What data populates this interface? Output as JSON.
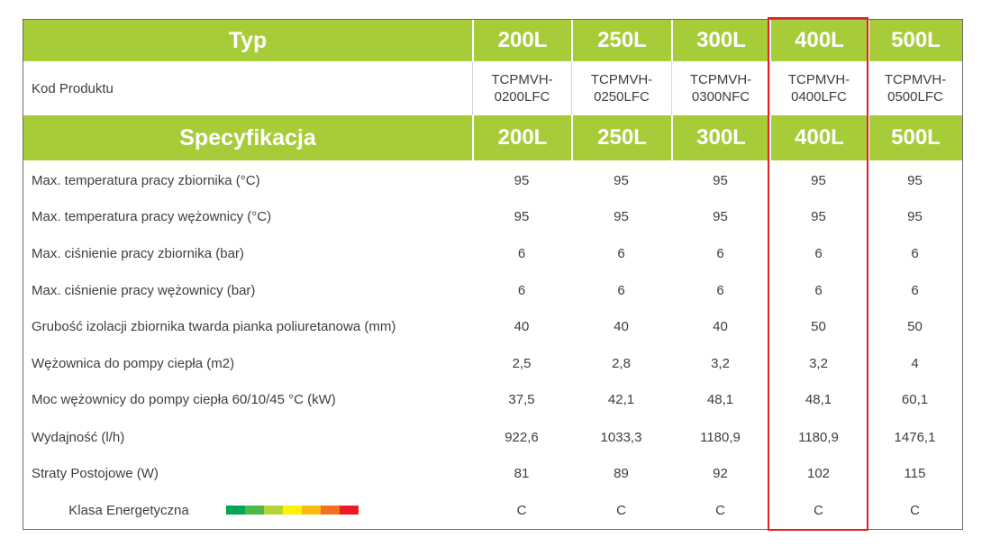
{
  "header_row": {
    "title": "Typ",
    "sizes": [
      "200L",
      "250L",
      "300L",
      "400L",
      "500L"
    ]
  },
  "code_row": {
    "label": "Kod Produktu",
    "codes": [
      "TCPMVH-\n0200LFC",
      "TCPMVH-\n0250LFC",
      "TCPMVH-\n0300NFC",
      "TCPMVH-\n0400LFC",
      "TCPMVH-\n0500LFC"
    ]
  },
  "spec_header": {
    "title": "Specyfikacja",
    "sizes": [
      "200L",
      "250L",
      "300L",
      "400L",
      "500L"
    ]
  },
  "rows": [
    {
      "label": "Max. temperatura pracy zbiornika (°C)",
      "values": [
        "95",
        "95",
        "95",
        "95",
        "95"
      ]
    },
    {
      "label": "Max. temperatura pracy wężownicy (°C)",
      "values": [
        "95",
        "95",
        "95",
        "95",
        "95"
      ]
    },
    {
      "label": "Max. ciśnienie pracy zbiornika (bar)",
      "values": [
        "6",
        "6",
        "6",
        "6",
        "6"
      ]
    },
    {
      "label": "Max. ciśnienie pracy wężownicy (bar)",
      "values": [
        "6",
        "6",
        "6",
        "6",
        "6"
      ]
    },
    {
      "label": "Grubość izolacji zbiornika twarda pianka poliuretanowa  (mm)",
      "values": [
        "40",
        "40",
        "40",
        "50",
        "50"
      ]
    },
    {
      "label": "Wężownica do pompy ciepła (m2)",
      "values": [
        "2,5",
        "2,8",
        "3,2",
        "3,2",
        "4"
      ]
    },
    {
      "label": "Moc wężownicy do pompy ciepła 60/10/45 °C (kW)",
      "values": [
        "37,5",
        "42,1",
        "48,1",
        "48,1",
        "60,1"
      ]
    },
    {
      "label": "Wydajność (l/h)",
      "values": [
        "922,6",
        "1033,3",
        "1180,9",
        "1180,9",
        "1476,1"
      ]
    },
    {
      "label": "Straty Postojowe (W)",
      "values": [
        "81",
        "89",
        "92",
        "102",
        "115"
      ]
    },
    {
      "label": "Klasa Energetyczna",
      "values": [
        "C",
        "C",
        "C",
        "C",
        "C"
      ]
    }
  ],
  "energy_scale_colors": [
    "#00a651",
    "#4cb848",
    "#b5d334",
    "#fff200",
    "#fdb913",
    "#f37021",
    "#ed1c24"
  ],
  "colors": {
    "header_green": "#a6cd39",
    "highlight_red": "#e02424",
    "text": "#3e3e3e"
  }
}
